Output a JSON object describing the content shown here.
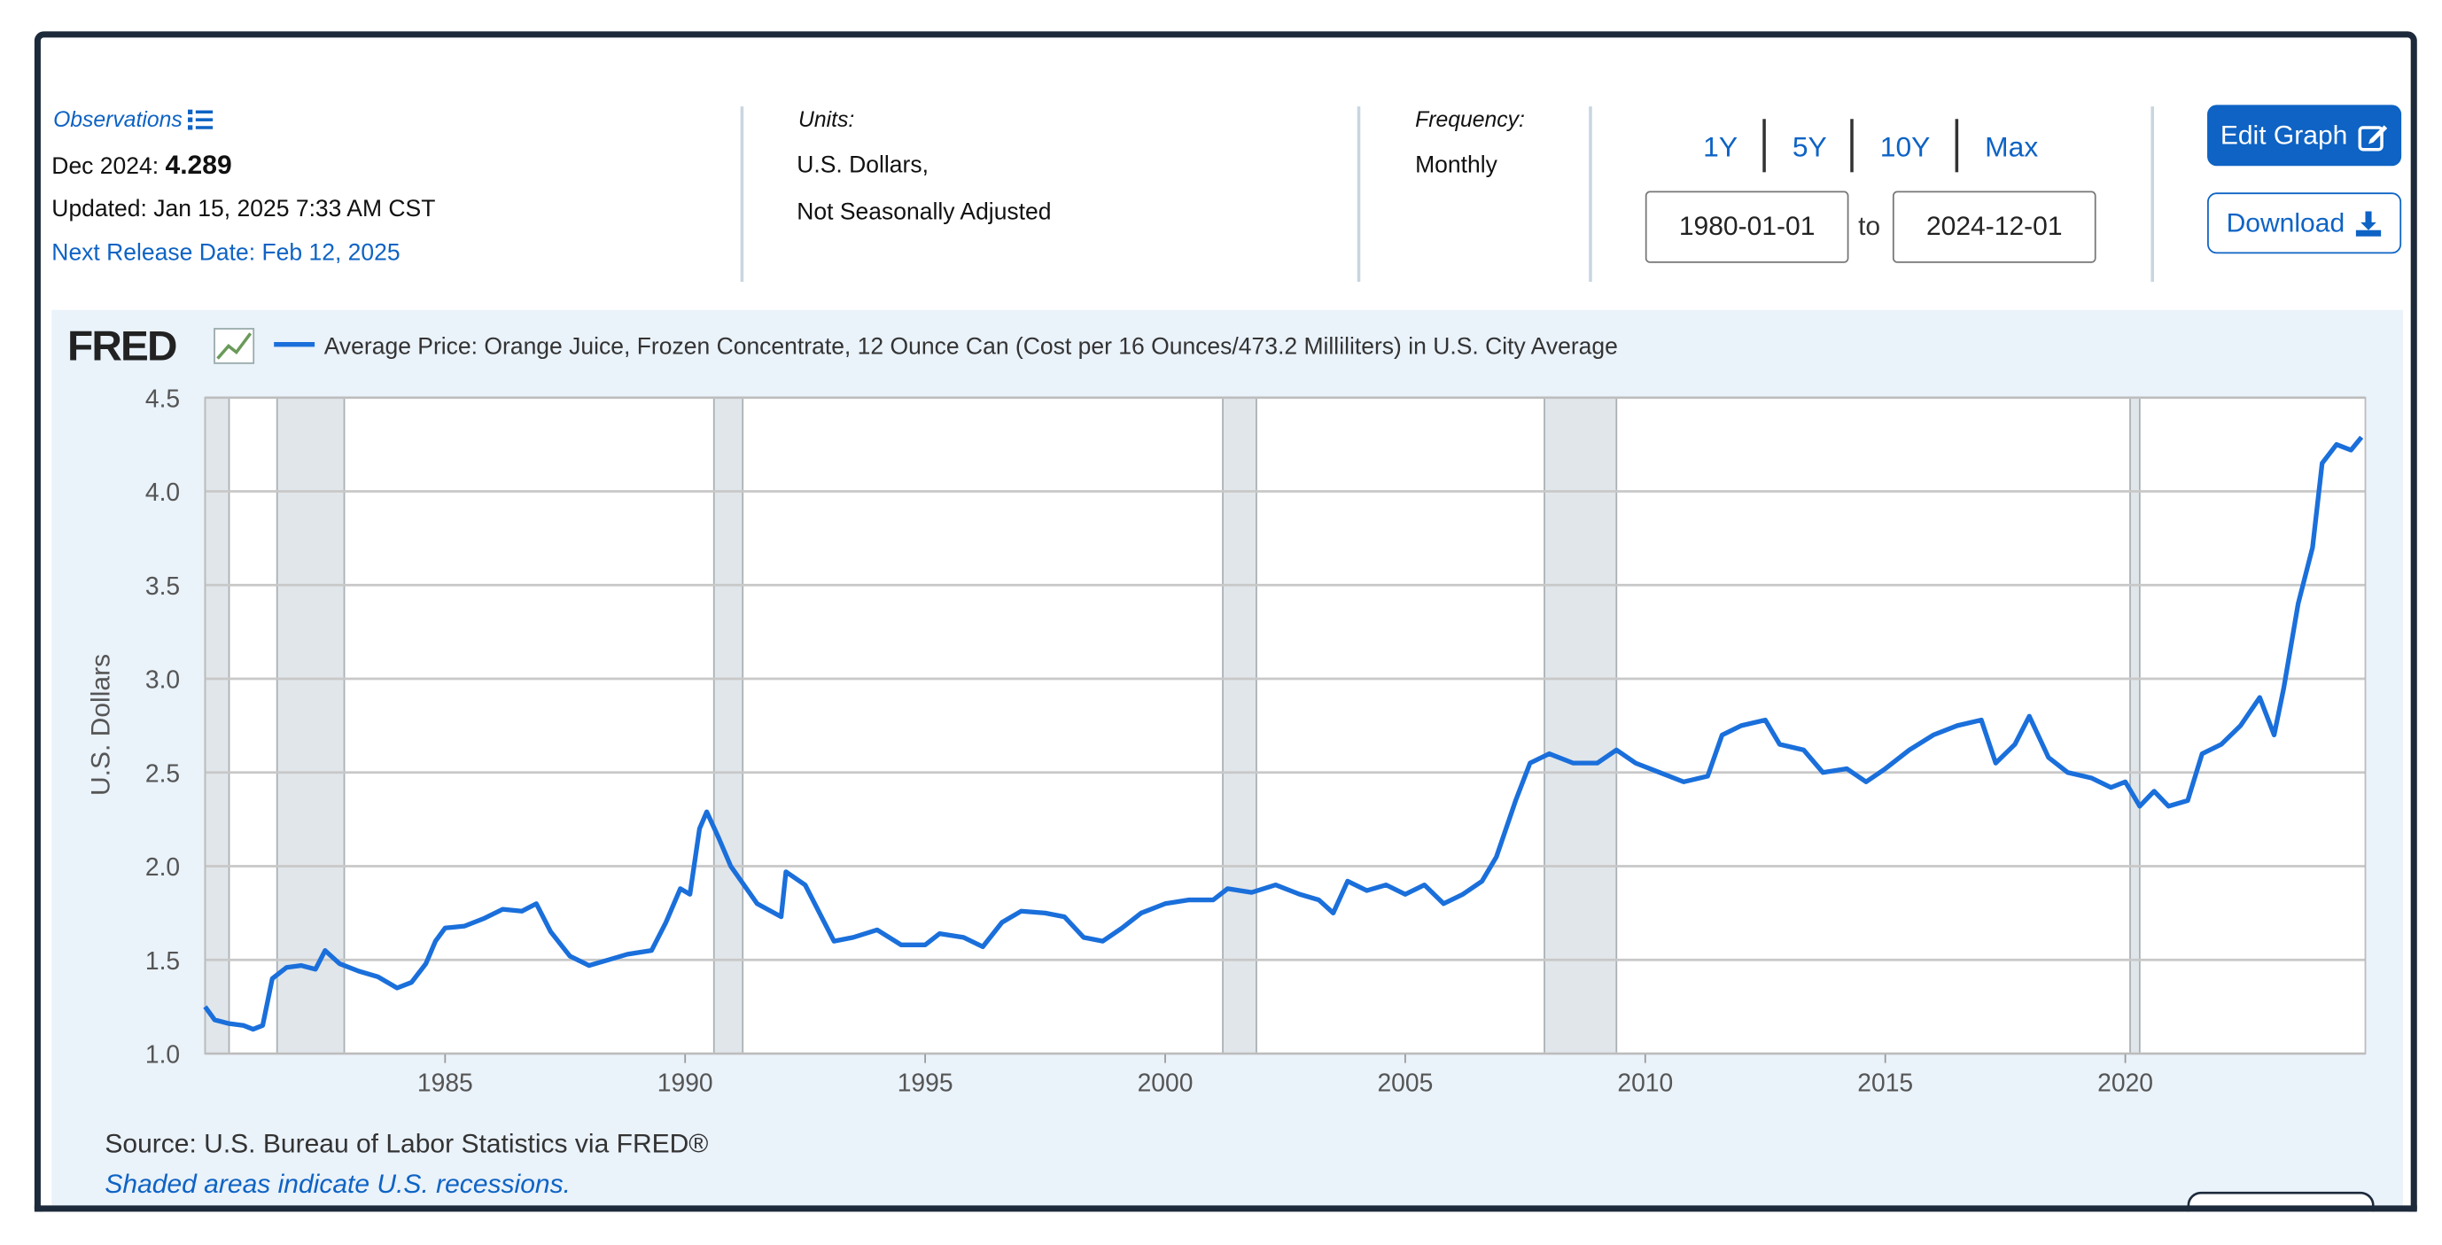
{
  "header": {
    "observations_label": "Observations",
    "observation_date": "Dec 2024:",
    "observation_value": "4.289",
    "updated": "Updated: Jan 15, 2025 7:33 AM CST",
    "next_release": "Next Release Date: Feb 12, 2025",
    "units_label": "Units:",
    "units": [
      "U.S. Dollars,",
      "Not Seasonally Adjusted"
    ],
    "frequency_label": "Frequency:",
    "frequency": "Monthly",
    "ranges": [
      "1Y",
      "5Y",
      "10Y",
      "Max"
    ],
    "start_date": "1980-01-01",
    "to": "to",
    "end_date": "2024-12-01",
    "buttons": [
      "Edit Graph",
      "Download"
    ]
  },
  "chart_data": {
    "type": "line",
    "logo": "FRED",
    "x": [
      1980.0,
      1980.2,
      1980.5,
      1980.8,
      1981.0,
      1981.2,
      1981.4,
      1981.7,
      1982.0,
      1982.3,
      1982.5,
      1982.8,
      1983.2,
      1983.6,
      1984.0,
      1984.3,
      1984.6,
      1984.8,
      1985.0,
      1985.4,
      1985.8,
      1986.2,
      1986.6,
      1986.9,
      1987.2,
      1987.6,
      1988.0,
      1988.4,
      1988.8,
      1989.3,
      1989.6,
      1989.9,
      1990.1,
      1990.3,
      1990.45,
      1990.7,
      1990.95,
      1991.5,
      1992.0,
      1992.1,
      1992.5,
      1992.8,
      1993.1,
      1993.5,
      1994.0,
      1994.5,
      1995.0,
      1995.3,
      1995.8,
      1996.2,
      1996.6,
      1997.0,
      1997.5,
      1997.9,
      1998.3,
      1998.7,
      1999.1,
      1999.5,
      2000.0,
      2000.5,
      2001.0,
      2001.3,
      2001.8,
      2002.3,
      2002.8,
      2003.2,
      2003.5,
      2003.8,
      2004.2,
      2004.6,
      2005.0,
      2005.4,
      2005.8,
      2006.2,
      2006.6,
      2006.9,
      2007.3,
      2007.6,
      2008.0,
      2008.5,
      2009.0,
      2009.4,
      2009.8,
      2010.3,
      2010.8,
      2011.3,
      2011.6,
      2012.0,
      2012.5,
      2012.8,
      2013.3,
      2013.7,
      2014.2,
      2014.6,
      2015.0,
      2015.5,
      2016.0,
      2016.5,
      2017.0,
      2017.3,
      2017.7,
      2018.0,
      2018.4,
      2018.8,
      2019.3,
      2019.7,
      2020.0,
      2020.3,
      2020.6,
      2020.9,
      2021.3,
      2021.6,
      2022.0,
      2022.4,
      2022.8,
      2023.1,
      2023.3,
      2023.6,
      2023.9,
      2024.1,
      2024.4,
      2024.7,
      2024.92
    ],
    "series": [
      {
        "name": "Average Price: Orange Juice, Frozen Concentrate, 12 Ounce Can (Cost per 16 Ounces/473.2 Milliliters) in U.S. City Average",
        "color": "#1a6fdb",
        "values": [
          1.25,
          1.18,
          1.16,
          1.15,
          1.13,
          1.15,
          1.4,
          1.46,
          1.47,
          1.45,
          1.55,
          1.48,
          1.44,
          1.41,
          1.35,
          1.38,
          1.48,
          1.6,
          1.67,
          1.68,
          1.72,
          1.77,
          1.76,
          1.8,
          1.65,
          1.52,
          1.47,
          1.5,
          1.53,
          1.55,
          1.7,
          1.88,
          1.85,
          2.2,
          2.29,
          2.15,
          2.0,
          1.8,
          1.73,
          1.97,
          1.9,
          1.75,
          1.6,
          1.62,
          1.66,
          1.58,
          1.58,
          1.64,
          1.62,
          1.57,
          1.7,
          1.76,
          1.75,
          1.73,
          1.62,
          1.6,
          1.67,
          1.75,
          1.8,
          1.82,
          1.82,
          1.88,
          1.86,
          1.9,
          1.85,
          1.82,
          1.75,
          1.92,
          1.87,
          1.9,
          1.85,
          1.9,
          1.8,
          1.85,
          1.92,
          2.05,
          2.35,
          2.55,
          2.6,
          2.55,
          2.55,
          2.62,
          2.55,
          2.5,
          2.45,
          2.48,
          2.7,
          2.75,
          2.78,
          2.65,
          2.62,
          2.5,
          2.52,
          2.45,
          2.52,
          2.62,
          2.7,
          2.75,
          2.78,
          2.55,
          2.65,
          2.8,
          2.58,
          2.5,
          2.47,
          2.42,
          2.45,
          2.32,
          2.4,
          2.32,
          2.35,
          2.6,
          2.65,
          2.75,
          2.9,
          2.7,
          2.95,
          3.4,
          3.7,
          4.15,
          4.25,
          4.22,
          4.289
        ]
      }
    ],
    "xlim": [
      1980,
      2025
    ],
    "xticks": [
      1985,
      1990,
      1995,
      2000,
      2005,
      2010,
      2015,
      2020
    ],
    "ylim": [
      1,
      4.5
    ],
    "yticks": [
      {
        "value": 1,
        "label": "1.0"
      },
      1.5,
      {
        "value": 2,
        "label": "2.0"
      },
      2.5,
      {
        "value": 3,
        "label": "3.0"
      },
      3.5,
      {
        "value": 4,
        "label": "4.0"
      },
      4.5
    ],
    "y_label": "U.S. Dollars",
    "grid": true,
    "recessions": [
      [
        1980.0,
        1980.5
      ],
      [
        1981.5,
        1982.9
      ],
      [
        1990.6,
        1991.2
      ],
      [
        2001.2,
        2001.9
      ],
      [
        2007.9,
        2009.4
      ],
      [
        2020.1,
        2020.3
      ]
    ],
    "source": "Source: U.S. Bureau of Labor Statistics via FRED®",
    "note": "Shaded areas indicate U.S. recessions."
  }
}
